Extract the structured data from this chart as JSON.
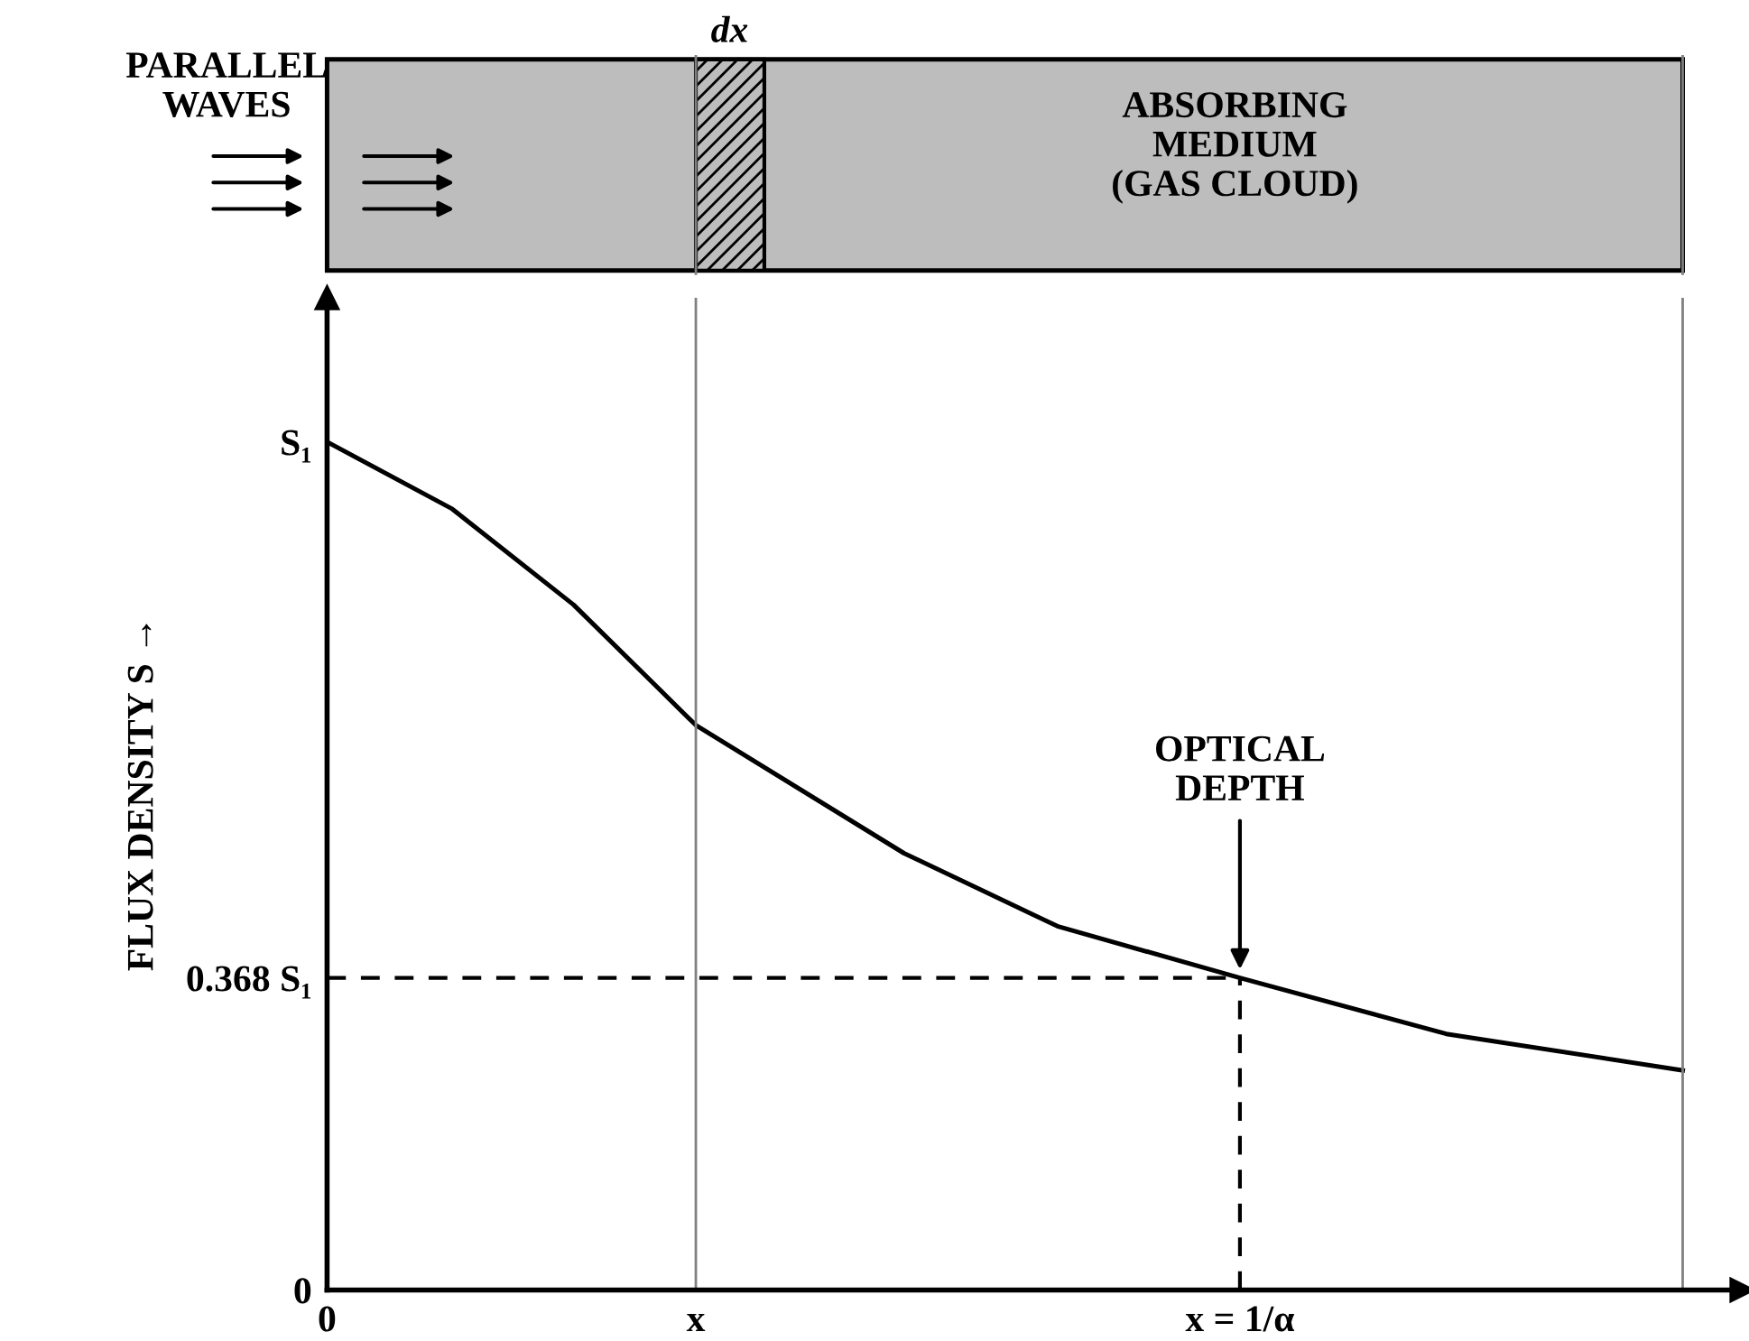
{
  "chart_data": {
    "type": "line",
    "ylabel": "FLUX DENSITY S →",
    "x": [
      0,
      0.137,
      0.27,
      0.404,
      0.632,
      0.8,
      1,
      1.226,
      1.485
    ],
    "series": [
      {
        "color": "#000000",
        "values": [
          1,
          0.921,
          0.808,
          0.666,
          0.515,
          0.429,
          0.368,
          0.302,
          0.259
        ]
      }
    ],
    "xlim": [
      0,
      1.55
    ],
    "ylim": [
      0,
      1.17
    ],
    "xticks": [
      0,
      {
        "value": 0.404,
        "label": "x"
      },
      {
        "value": 1,
        "label": "x = 1/α"
      }
    ],
    "yticks": [
      0,
      {
        "value": 0.368,
        "label": "0.368 S₁"
      },
      {
        "value": 1,
        "label": "S₁"
      }
    ],
    "ref_lines": [
      {
        "axis": "x",
        "value": 0.404,
        "color": "#808080",
        "line_style": "solid"
      },
      {
        "axis": "x",
        "value": 1.485,
        "color": "#808080",
        "line_style": "solid"
      },
      {
        "axis": "y",
        "value": 0.368,
        "color": "#000000",
        "line_style": "dashed"
      },
      {
        "axis": "x",
        "value": 1,
        "color": "#000000",
        "line_style": "dashed"
      }
    ],
    "annotations": [
      "PARALLEL\nWAVES",
      "dx",
      "ABSORBING\nMEDIUM\n(GAS CLOUD)",
      {
        "text": "OPTICAL\nDEPTH",
        "x": 1,
        "y": 0.368
      }
    ],
    "grid": false,
    "marker": "none",
    "line_style": "solid"
  }
}
